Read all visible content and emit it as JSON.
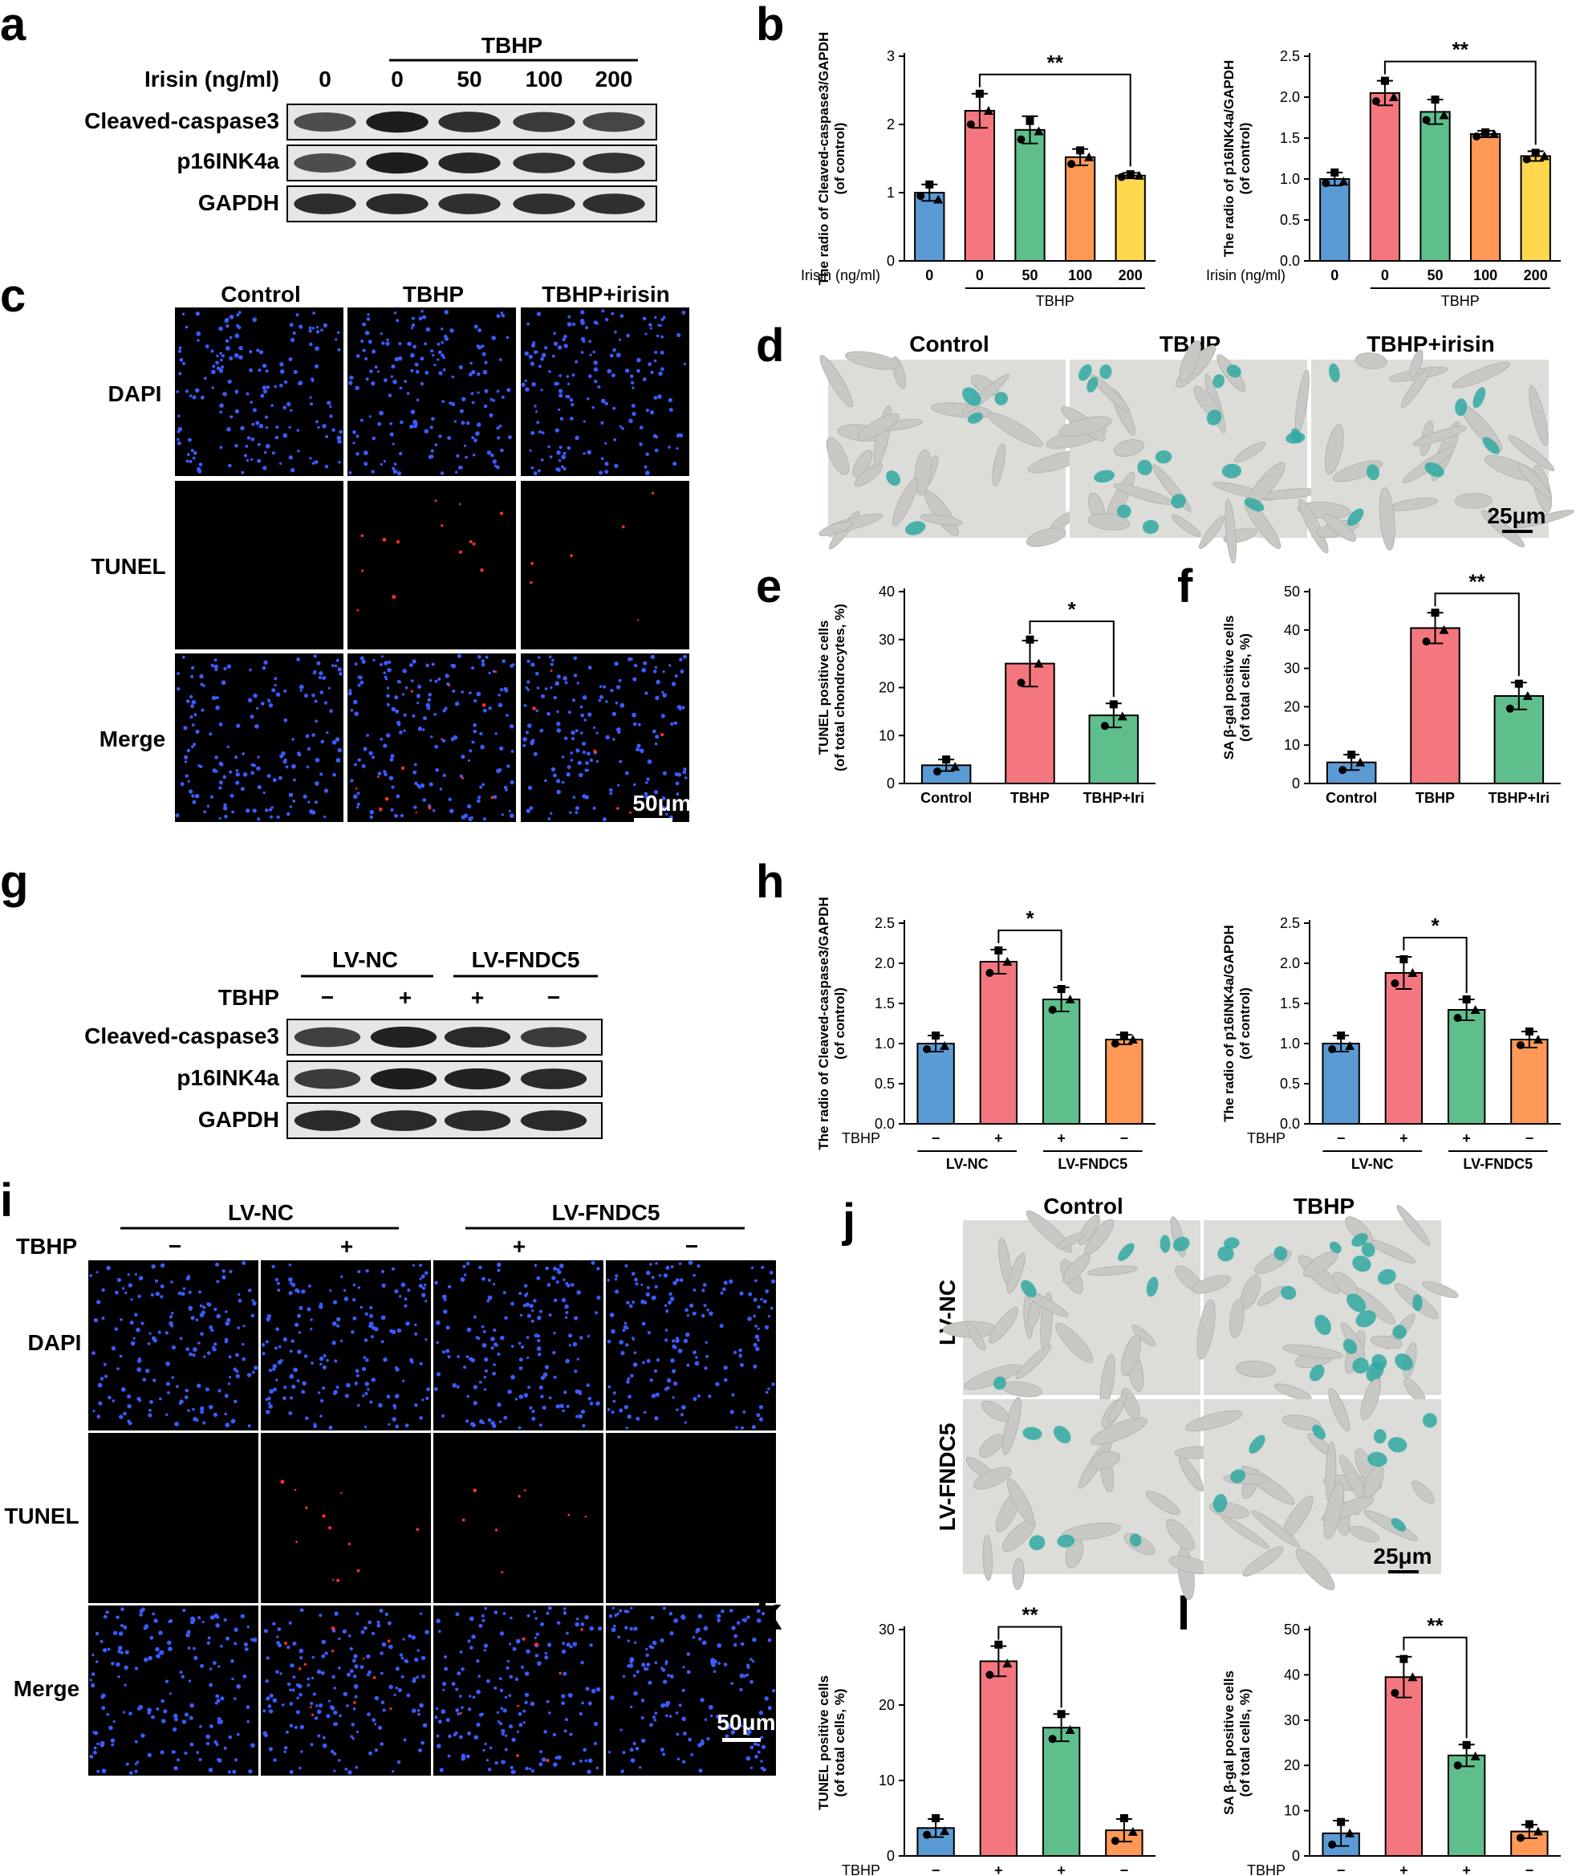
{
  "panel_letters": {
    "a": "a",
    "b": "b",
    "c": "c",
    "d": "d",
    "e": "e",
    "f": "f",
    "g": "g",
    "h": "h",
    "i": "i",
    "j": "j",
    "k": "k",
    "l": "l"
  },
  "panel_a": {
    "tbhp_label": "TBHP",
    "irisin_label": "Irisin (ng/ml)",
    "doses": [
      "0",
      "0",
      "50",
      "100",
      "200"
    ],
    "rows": [
      "Cleaved-caspase3",
      "p16INK4a",
      "GAPDH"
    ],
    "band_intensity": [
      [
        0.7,
        0.92,
        0.84,
        0.78,
        0.74
      ],
      [
        0.7,
        0.92,
        0.88,
        0.83,
        0.82
      ],
      [
        0.85,
        0.86,
        0.84,
        0.84,
        0.84
      ]
    ]
  },
  "panel_c": {
    "columns": [
      "Control",
      "TBHP",
      "TBHP+irisin"
    ],
    "rows": [
      "DAPI",
      "TUNEL",
      "Merge"
    ],
    "scale": "50μm"
  },
  "panel_d": {
    "columns": [
      "Control",
      "TBHP",
      "TBHP+irisin"
    ],
    "scale": "25μm"
  },
  "panel_g": {
    "group1": "LV-NC",
    "group2": "LV-FNDC5",
    "tbhp_label": "TBHP",
    "signs": [
      "−",
      "+",
      "+",
      "−"
    ],
    "rows": [
      "Cleaved-caspase3",
      "p16INK4a",
      "GAPDH"
    ],
    "band_intensity": [
      [
        0.76,
        0.9,
        0.86,
        0.78
      ],
      [
        0.78,
        0.92,
        0.9,
        0.86
      ],
      [
        0.86,
        0.86,
        0.86,
        0.86
      ]
    ]
  },
  "panel_i": {
    "group1": "LV-NC",
    "group2": "LV-FNDC5",
    "tbhp_label": "TBHP",
    "signs": [
      "−",
      "+",
      "+",
      "−"
    ],
    "rows": [
      "DAPI",
      "TUNEL",
      "Merge"
    ],
    "scale": "50μm"
  },
  "panel_j": {
    "columns": [
      "Control",
      "TBHP"
    ],
    "rows": [
      "LV-NC",
      "LV-FNDC5"
    ],
    "scale": "25μm"
  },
  "chart_data": [
    {
      "id": "b1",
      "type": "bar",
      "ylabel": "The radio of Cleaved-caspase3/GAPDH (of control)",
      "categories": [
        "0",
        "0",
        "50",
        "100",
        "200"
      ],
      "values": [
        1.0,
        2.2,
        1.92,
        1.52,
        1.25
      ],
      "errors": [
        0.12,
        0.25,
        0.2,
        0.12,
        0.04
      ],
      "points": [
        [
          0.95,
          1.12,
          0.9
        ],
        [
          2.0,
          2.45,
          2.2
        ],
        [
          1.78,
          2.05,
          1.9
        ],
        [
          1.42,
          1.62,
          1.52
        ],
        [
          1.23,
          1.27,
          1.25
        ]
      ],
      "ylim": [
        0,
        3
      ],
      "yticks": [
        0,
        1,
        2,
        3
      ],
      "xaxis_title": "Irisin (ng/ml)",
      "group_label": "TBHP",
      "group_span": [
        1,
        4
      ],
      "significance": [
        {
          "from": 1,
          "to": 4,
          "label": "**"
        }
      ]
    },
    {
      "id": "b2",
      "type": "bar",
      "ylabel": "The radio of p16INK4a/GAPDH (of control)",
      "categories": [
        "0",
        "0",
        "50",
        "100",
        "200"
      ],
      "values": [
        1.0,
        2.05,
        1.82,
        1.55,
        1.28
      ],
      "errors": [
        0.08,
        0.15,
        0.15,
        0.04,
        0.06
      ],
      "points": [
        [
          0.95,
          1.08,
          0.97
        ],
        [
          1.95,
          2.2,
          2.0
        ],
        [
          1.72,
          1.97,
          1.78
        ],
        [
          1.52,
          1.57,
          1.55
        ],
        [
          1.24,
          1.32,
          1.28
        ]
      ],
      "ylim": [
        0,
        2.5
      ],
      "yticks": [
        0,
        0.5,
        1.0,
        1.5,
        2.0,
        2.5
      ],
      "xaxis_title": "Irisin (ng/ml)",
      "group_label": "TBHP",
      "group_span": [
        1,
        4
      ],
      "significance": [
        {
          "from": 1,
          "to": 4,
          "label": "**"
        }
      ]
    },
    {
      "id": "e",
      "type": "bar",
      "ylabel": "TUNEL positive cells (of total chondrocytes, %)",
      "categories": [
        "Control",
        "TBHP",
        "TBHP+Iri"
      ],
      "values": [
        3.8,
        25,
        14.2
      ],
      "errors": [
        1.2,
        4.8,
        2.5
      ],
      "points": [
        [
          2.5,
          5,
          3.5
        ],
        [
          21,
          30,
          25
        ],
        [
          12,
          16.5,
          14
        ]
      ],
      "ylim": [
        0,
        40
      ],
      "yticks": [
        0,
        10,
        20,
        30,
        40
      ],
      "significance": [
        {
          "from": 1,
          "to": 2,
          "label": "*"
        }
      ]
    },
    {
      "id": "f",
      "type": "bar",
      "ylabel": "SA β-gal positive cells (of total cells, %)",
      "categories": [
        "Control",
        "TBHP",
        "TBHP+Iri"
      ],
      "values": [
        5.5,
        40.5,
        22.8
      ],
      "errors": [
        2,
        4,
        3.5
      ],
      "points": [
        [
          3.5,
          7.5,
          5.5
        ],
        [
          37,
          44.5,
          40
        ],
        [
          19.5,
          26,
          22.8
        ]
      ],
      "ylim": [
        0,
        50
      ],
      "yticks": [
        0,
        10,
        20,
        30,
        40,
        50
      ],
      "significance": [
        {
          "from": 1,
          "to": 2,
          "label": "**"
        }
      ]
    },
    {
      "id": "h1",
      "type": "bar",
      "ylabel": "The radio of Cleaved-caspase3/GAPDH (of control)",
      "categories": [
        "−",
        "+",
        "+",
        "−"
      ],
      "values": [
        1.0,
        2.02,
        1.55,
        1.05
      ],
      "errors": [
        0.1,
        0.15,
        0.15,
        0.06
      ],
      "points": [
        [
          0.93,
          1.1,
          0.97
        ],
        [
          1.88,
          2.16,
          2.02
        ],
        [
          1.42,
          1.68,
          1.55
        ],
        [
          1.0,
          1.1,
          1.05
        ]
      ],
      "ylim": [
        0,
        2.5
      ],
      "yticks": [
        0,
        0.5,
        1.0,
        1.5,
        2.0,
        2.5
      ],
      "xaxis_title": "TBHP",
      "groups": [
        {
          "label": "LV-NC",
          "span": [
            0,
            1
          ]
        },
        {
          "label": "LV-FNDC5",
          "span": [
            2,
            3
          ]
        }
      ],
      "significance": [
        {
          "from": 1,
          "to": 2,
          "label": "*"
        }
      ]
    },
    {
      "id": "h2",
      "type": "bar",
      "ylabel": "The radio of p16INK4a/GAPDH (of control)",
      "categories": [
        "−",
        "+",
        "+",
        "−"
      ],
      "values": [
        1.0,
        1.88,
        1.42,
        1.05
      ],
      "errors": [
        0.1,
        0.2,
        0.13,
        0.1
      ],
      "points": [
        [
          0.93,
          1.1,
          0.97
        ],
        [
          1.75,
          2.05,
          1.88
        ],
        [
          1.32,
          1.55,
          1.42
        ],
        [
          0.98,
          1.15,
          1.05
        ]
      ],
      "ylim": [
        0,
        2.5
      ],
      "yticks": [
        0,
        0.5,
        1.0,
        1.5,
        2.0,
        2.5
      ],
      "xaxis_title": "TBHP",
      "groups": [
        {
          "label": "LV-NC",
          "span": [
            0,
            1
          ]
        },
        {
          "label": "LV-FNDC5",
          "span": [
            2,
            3
          ]
        }
      ],
      "significance": [
        {
          "from": 1,
          "to": 2,
          "label": "*"
        }
      ]
    },
    {
      "id": "k",
      "type": "bar",
      "ylabel": "TUNEL positive cells (of total cells, %)",
      "categories": [
        "−",
        "+",
        "+",
        "−"
      ],
      "values": [
        3.7,
        25.8,
        17,
        3.4
      ],
      "errors": [
        1.2,
        2,
        1.8,
        1.5
      ],
      "points": [
        [
          2.8,
          5,
          3.3
        ],
        [
          24,
          28,
          25.5
        ],
        [
          15.5,
          18.8,
          16.7
        ],
        [
          2,
          5,
          3.2
        ]
      ],
      "ylim": [
        0,
        30
      ],
      "yticks": [
        0,
        10,
        20,
        30
      ],
      "xaxis_title": "TBHP",
      "groups": [
        {
          "label": "LV-NC",
          "span": [
            0,
            1
          ]
        },
        {
          "label": "LV-FNDC5",
          "span": [
            2,
            3
          ]
        }
      ],
      "significance": [
        {
          "from": 1,
          "to": 2,
          "label": "**"
        }
      ]
    },
    {
      "id": "l",
      "type": "bar",
      "ylabel": "SA β-gal positive cells (of total cells, %)",
      "categories": [
        "−",
        "+",
        "+",
        "−"
      ],
      "values": [
        5,
        39.5,
        22.2,
        5.4
      ],
      "errors": [
        2.8,
        4.5,
        2.4,
        1.5
      ],
      "points": [
        [
          2.5,
          7.5,
          5
        ],
        [
          36,
          43.5,
          39.5
        ],
        [
          20,
          24.5,
          22
        ],
        [
          4,
          7,
          5.4
        ]
      ],
      "ylim": [
        0,
        50
      ],
      "yticks": [
        0,
        10,
        20,
        30,
        40,
        50
      ],
      "xaxis_title": "TBHP",
      "groups": [
        {
          "label": "LV-NC",
          "span": [
            0,
            1
          ]
        },
        {
          "label": "LV-FNDC5",
          "span": [
            2,
            3
          ]
        }
      ],
      "significance": [
        {
          "from": 1,
          "to": 2,
          "label": "**"
        }
      ]
    }
  ],
  "colors": {
    "blue": "#5b9bd5",
    "red": "#f4777f",
    "green": "#5fbf8c",
    "orange": "#ff9955",
    "yellow": "#ffd84d",
    "nuclei": "#3b5bff",
    "tunel": "#ff3030",
    "stain_bg": "#dcdcd8",
    "stain_cell": "#2fa9a2"
  }
}
